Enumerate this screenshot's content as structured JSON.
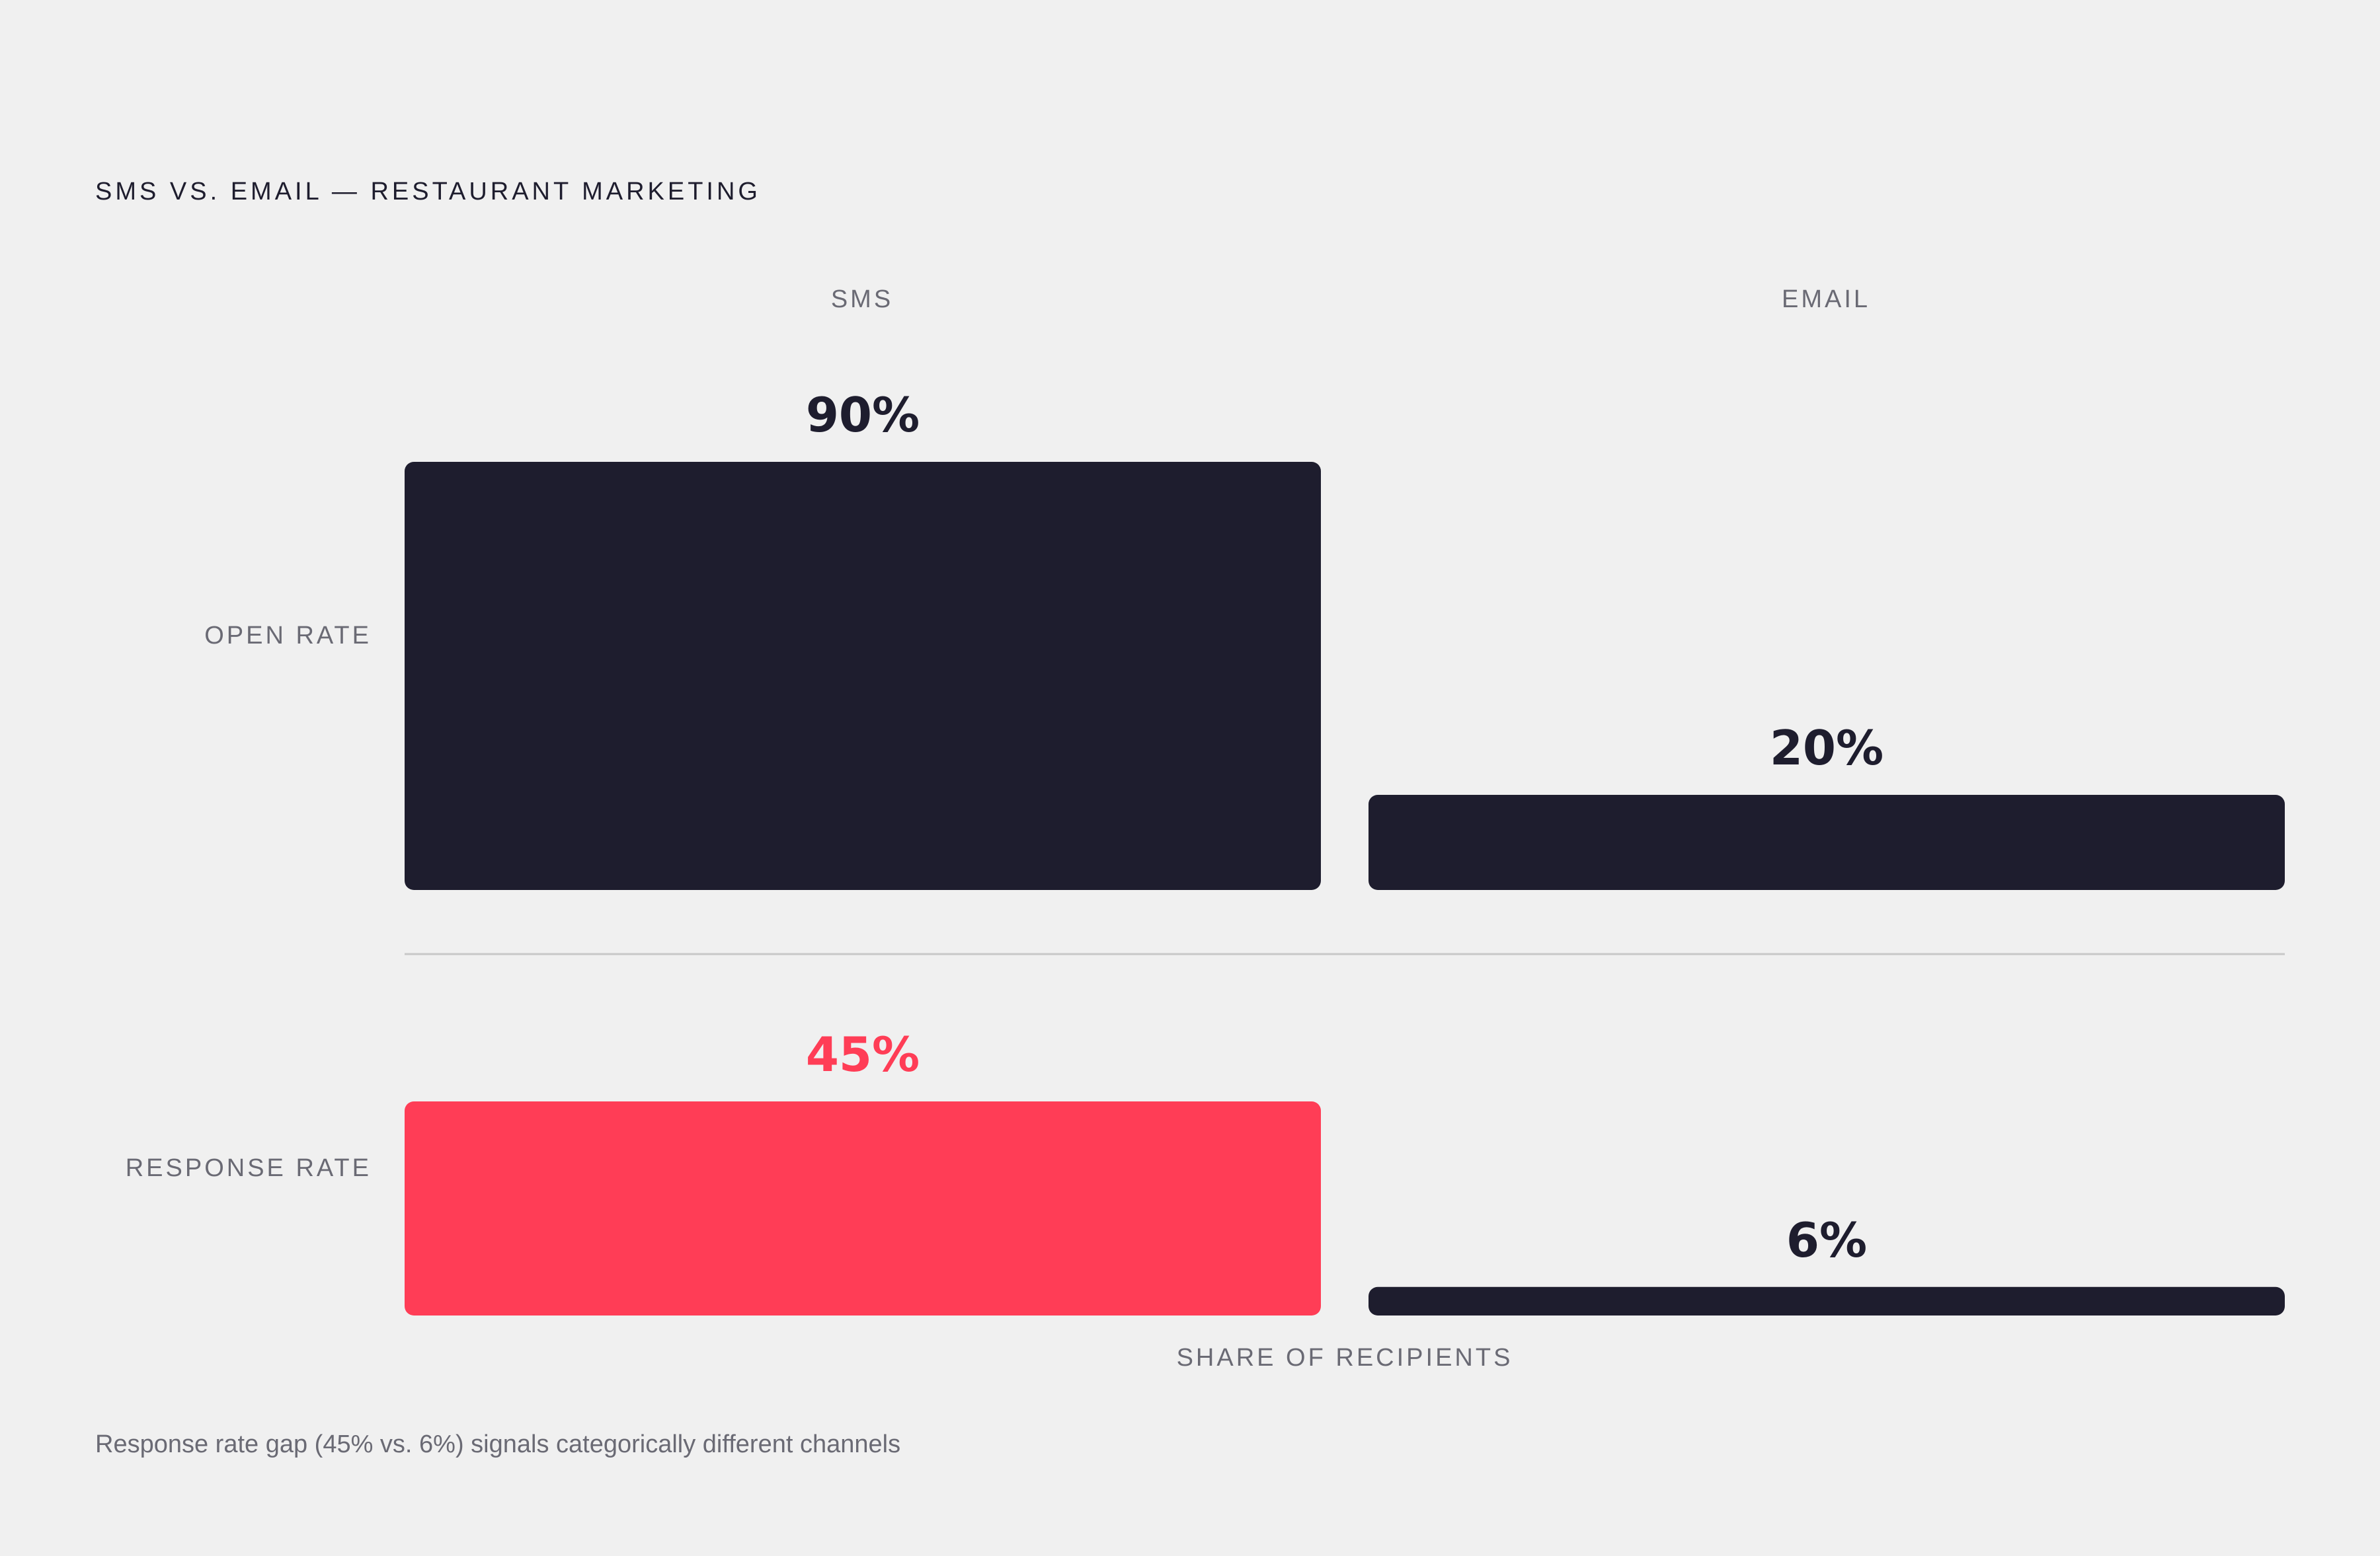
{
  "chart_data": {
    "type": "bar",
    "title": "SMS VS. EMAIL — RESTAURANT MARKETING",
    "columns": [
      "SMS",
      "EMAIL"
    ],
    "rows": [
      {
        "label": "OPEN RATE",
        "values": [
          90,
          20
        ],
        "value_labels": [
          "90%",
          "20%"
        ]
      },
      {
        "label": "RESPONSE RATE",
        "values": [
          45,
          6
        ],
        "value_labels": [
          "45%",
          "6%"
        ]
      }
    ],
    "xlabel": "SHARE OF RECIPIENTS",
    "unit": "%",
    "ylim": [
      0,
      100
    ],
    "highlight": {
      "row": 1,
      "column": 0
    },
    "caption": "Response rate gap (45% vs. 6%) signals categorically different channels",
    "colors": {
      "background": "#f0f0f0",
      "bar": "#1e1d2e",
      "highlight": "#ff3d56",
      "text_dark": "#1e1d2e",
      "text_muted": "#6a6a74",
      "divider": "#c8c8c8"
    }
  }
}
